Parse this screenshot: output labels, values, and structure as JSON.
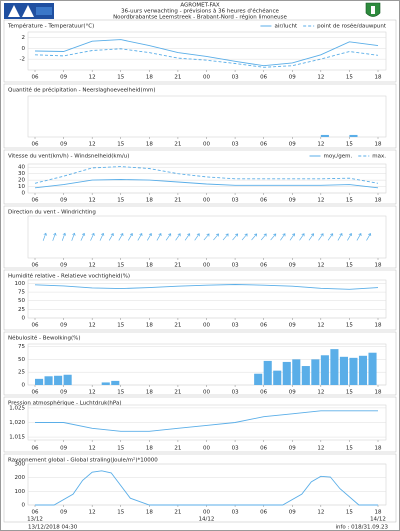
{
  "header": {
    "title": "AGROMET-FAX",
    "subtitle": "36-uurs verwachting - prévisions à 36 heures d'échéance",
    "region": "Noordbrabantse Leemstreek - Brabant-Nord - région limoneuse"
  },
  "footer": {
    "left": "13/12/2018 04:30",
    "right": "info : 018/31.09.23"
  },
  "chart_data": [
    {
      "type": "line",
      "title": "Température - Temperatuur(°C)",
      "legend": "top-right",
      "x": [
        0,
        3,
        6,
        9,
        12,
        15,
        18,
        21,
        24,
        27,
        30,
        33,
        36
      ],
      "series": [
        {
          "name": "air/lucht",
          "color": "#5aaee8",
          "dash": false,
          "values": [
            -0.5,
            -0.6,
            1.3,
            1.6,
            0.5,
            -0.8,
            -1.5,
            -2.4,
            -3.2,
            -2.7,
            -1.2,
            1.2,
            0.5
          ]
        },
        {
          "name": "point de rosée/dauwpunt",
          "color": "#5aaee8",
          "dash": true,
          "values": [
            -1.2,
            -1.4,
            -0.4,
            -0.1,
            -0.8,
            -1.8,
            -2.2,
            -2.8,
            -3.5,
            -3.2,
            -2,
            -0.6,
            -1.3
          ]
        }
      ],
      "xlim": [
        0,
        36
      ],
      "xticks": [
        {
          "value": 0,
          "label": "06"
        },
        {
          "value": 3,
          "label": "09"
        },
        {
          "value": 6,
          "label": "12"
        },
        {
          "value": 9,
          "label": "15"
        },
        {
          "value": 12,
          "label": "18"
        },
        {
          "value": 15,
          "label": "21"
        },
        {
          "value": 18,
          "label": "00"
        },
        {
          "value": 21,
          "label": "03"
        },
        {
          "value": 24,
          "label": "06"
        },
        {
          "value": 27,
          "label": "09"
        },
        {
          "value": 30,
          "label": "12"
        },
        {
          "value": 33,
          "label": "15"
        },
        {
          "value": 36,
          "label": "18"
        }
      ],
      "ylim": [
        -4,
        3
      ],
      "yticks": [
        -2,
        0,
        2
      ]
    },
    {
      "type": "bar",
      "title": "Quantité de précipitation - Neerslaghoeveelheid(mm)",
      "x": [
        30,
        33
      ],
      "color": "#5aaee8",
      "values": [
        0.1,
        0.1
      ],
      "xlim": [
        0,
        36
      ],
      "xticks": [
        {
          "value": 0,
          "label": "06"
        },
        {
          "value": 3,
          "label": "09"
        },
        {
          "value": 6,
          "label": "12"
        },
        {
          "value": 9,
          "label": "15"
        },
        {
          "value": 12,
          "label": "18"
        },
        {
          "value": 15,
          "label": "21"
        },
        {
          "value": 18,
          "label": "00"
        },
        {
          "value": 21,
          "label": "03"
        },
        {
          "value": 24,
          "label": "06"
        },
        {
          "value": 27,
          "label": "09"
        },
        {
          "value": 30,
          "label": "12"
        },
        {
          "value": 33,
          "label": "15"
        },
        {
          "value": 36,
          "label": "18"
        }
      ],
      "ylim": [
        0,
        2
      ],
      "yticks": []
    },
    {
      "type": "line",
      "title": "Vitesse du vent(km/h) - Windsnelheid(km/u)",
      "legend": "top-right",
      "x": [
        0,
        3,
        6,
        9,
        12,
        15,
        18,
        21,
        24,
        27,
        30,
        33,
        36
      ],
      "series": [
        {
          "name": "moy./gem.",
          "color": "#5aaee8",
          "dash": false,
          "values": [
            8,
            13,
            20,
            21,
            20,
            17,
            14,
            12,
            12,
            12,
            12,
            13,
            8
          ]
        },
        {
          "name": "max.",
          "color": "#5aaee8",
          "dash": true,
          "values": [
            15,
            26,
            39,
            41,
            38,
            30,
            25,
            22,
            22,
            22,
            22,
            23,
            15
          ]
        }
      ],
      "xlim": [
        0,
        36
      ],
      "xticks": [
        {
          "value": 0,
          "label": "06"
        },
        {
          "value": 3,
          "label": "09"
        },
        {
          "value": 6,
          "label": "12"
        },
        {
          "value": 9,
          "label": "15"
        },
        {
          "value": 12,
          "label": "18"
        },
        {
          "value": 15,
          "label": "21"
        },
        {
          "value": 18,
          "label": "00"
        },
        {
          "value": 21,
          "label": "03"
        },
        {
          "value": 24,
          "label": "06"
        },
        {
          "value": 27,
          "label": "09"
        },
        {
          "value": 30,
          "label": "12"
        },
        {
          "value": 33,
          "label": "15"
        },
        {
          "value": 36,
          "label": "18"
        }
      ],
      "ylim": [
        0,
        45
      ],
      "yticks": [
        0,
        10,
        20,
        30,
        40
      ]
    },
    {
      "type": "arrows",
      "title": "Direction du vent - Windrichting",
      "color": "#5aaee8",
      "x": [
        1,
        2,
        3,
        4,
        5,
        6,
        7,
        8,
        9,
        10,
        11,
        12,
        13,
        14,
        15,
        16,
        17,
        18,
        19,
        20,
        21,
        22,
        23,
        24,
        25,
        26,
        27,
        28,
        29,
        30,
        31,
        32,
        33,
        34,
        35
      ],
      "values": [
        200,
        200,
        200,
        200,
        205,
        205,
        205,
        210,
        210,
        210,
        210,
        210,
        210,
        215,
        215,
        215,
        215,
        220,
        220,
        220,
        220,
        220,
        220,
        220,
        220,
        215,
        215,
        215,
        215,
        215,
        215,
        210,
        210,
        210,
        210
      ],
      "xlim": [
        0,
        36
      ],
      "xticks": [
        {
          "value": 0,
          "label": "06"
        },
        {
          "value": 3,
          "label": "09"
        },
        {
          "value": 6,
          "label": "12"
        },
        {
          "value": 9,
          "label": "15"
        },
        {
          "value": 12,
          "label": "18"
        },
        {
          "value": 15,
          "label": "21"
        },
        {
          "value": 18,
          "label": "00"
        },
        {
          "value": 21,
          "label": "03"
        },
        {
          "value": 24,
          "label": "06"
        },
        {
          "value": 27,
          "label": "09"
        },
        {
          "value": 30,
          "label": "12"
        },
        {
          "value": 33,
          "label": "15"
        },
        {
          "value": 36,
          "label": "18"
        }
      ]
    },
    {
      "type": "line",
      "title": "Humidité relative - Relatieve vochtigheid(%)",
      "x": [
        0,
        3,
        6,
        9,
        12,
        15,
        18,
        21,
        24,
        27,
        30,
        33,
        36
      ],
      "series": [
        {
          "name": "humidité",
          "color": "#5aaee8",
          "dash": false,
          "values": [
            96,
            93,
            87,
            85,
            88,
            92,
            95,
            97,
            95,
            92,
            86,
            83,
            88
          ]
        }
      ],
      "xlim": [
        0,
        36
      ],
      "xticks": [
        {
          "value": 0,
          "label": "06"
        },
        {
          "value": 3,
          "label": "09"
        },
        {
          "value": 6,
          "label": "12"
        },
        {
          "value": 9,
          "label": "15"
        },
        {
          "value": 12,
          "label": "18"
        },
        {
          "value": 15,
          "label": "21"
        },
        {
          "value": 18,
          "label": "00"
        },
        {
          "value": 21,
          "label": "03"
        },
        {
          "value": 24,
          "label": "06"
        },
        {
          "value": 27,
          "label": "09"
        },
        {
          "value": 30,
          "label": "12"
        },
        {
          "value": 33,
          "label": "15"
        },
        {
          "value": 36,
          "label": "18"
        }
      ],
      "ylim": [
        0,
        110
      ],
      "yticks": [
        0,
        25,
        50,
        75,
        100
      ]
    },
    {
      "type": "bar",
      "title": "Nébulosité - Bewolking(%)",
      "color": "#5aaee8",
      "x": [
        0,
        1,
        2,
        3,
        7,
        8,
        23,
        24,
        25,
        26,
        27,
        28,
        29,
        30,
        31,
        32,
        33,
        34,
        35
      ],
      "values": [
        12,
        17,
        18,
        20,
        5,
        8,
        22,
        47,
        28,
        45,
        50,
        37,
        50,
        58,
        70,
        55,
        53,
        57,
        63
      ],
      "xlim": [
        0,
        36
      ],
      "xticks": [
        {
          "value": 0,
          "label": "06"
        },
        {
          "value": 3,
          "label": "09"
        },
        {
          "value": 6,
          "label": "12"
        },
        {
          "value": 9,
          "label": "15"
        },
        {
          "value": 12,
          "label": "18"
        },
        {
          "value": 15,
          "label": "21"
        },
        {
          "value": 18,
          "label": "00"
        },
        {
          "value": 21,
          "label": "03"
        },
        {
          "value": 24,
          "label": "06"
        },
        {
          "value": 27,
          "label": "09"
        },
        {
          "value": 30,
          "label": "12"
        },
        {
          "value": 33,
          "label": "15"
        },
        {
          "value": 36,
          "label": "18"
        }
      ],
      "ylim": [
        0,
        80
      ],
      "yticks": [
        0,
        25,
        50,
        75
      ]
    },
    {
      "type": "line",
      "title": "Pression atmosphérique - Luchtdruk(hPa)",
      "x": [
        0,
        3,
        6,
        9,
        12,
        15,
        18,
        21,
        24,
        27,
        30,
        33,
        36
      ],
      "series": [
        {
          "name": "pression",
          "color": "#5aaee8",
          "dash": false,
          "values": [
            1020,
            1020,
            1018,
            1017,
            1017,
            1018,
            1019,
            1020,
            1022,
            1023,
            1024,
            1024,
            1024
          ]
        }
      ],
      "xlim": [
        0,
        36
      ],
      "xticks": [
        {
          "value": 0,
          "label": "06"
        },
        {
          "value": 3,
          "label": "09"
        },
        {
          "value": 6,
          "label": "12"
        },
        {
          "value": 9,
          "label": "15"
        },
        {
          "value": 12,
          "label": "18"
        },
        {
          "value": 15,
          "label": "21"
        },
        {
          "value": 18,
          "label": "00"
        },
        {
          "value": 21,
          "label": "03"
        },
        {
          "value": 24,
          "label": "06"
        },
        {
          "value": 27,
          "label": "09"
        },
        {
          "value": 30,
          "label": "12"
        },
        {
          "value": 33,
          "label": "15"
        },
        {
          "value": 36,
          "label": "18"
        }
      ],
      "ylim": [
        1014,
        1026
      ],
      "yticks": [
        {
          "value": 1015,
          "label": "1,015"
        },
        {
          "value": 1020,
          "label": "1,020"
        },
        {
          "value": 1025,
          "label": "1,025"
        }
      ]
    },
    {
      "type": "line",
      "title": "Rayonnement global - Global straling(Joule/m²)*10000",
      "x": [
        0,
        2,
        4,
        5,
        6,
        7,
        8,
        10,
        12,
        24,
        26,
        28,
        29,
        30,
        31,
        32,
        34,
        36
      ],
      "series": [
        {
          "name": "rayonnement",
          "color": "#5aaee8",
          "dash": false,
          "values": [
            0,
            0,
            80,
            180,
            240,
            250,
            235,
            50,
            0,
            0,
            0,
            80,
            170,
            210,
            205,
            120,
            0,
            0
          ]
        }
      ],
      "xlim": [
        0,
        36
      ],
      "xticks": [
        {
          "value": 0,
          "label": "06"
        },
        {
          "value": 3,
          "label": "09"
        },
        {
          "value": 6,
          "label": "12"
        },
        {
          "value": 9,
          "label": "15"
        },
        {
          "value": 12,
          "label": "18"
        },
        {
          "value": 15,
          "label": "21"
        },
        {
          "value": 18,
          "label": "00"
        },
        {
          "value": 21,
          "label": "03"
        },
        {
          "value": 24,
          "label": "06"
        },
        {
          "value": 27,
          "label": "09"
        },
        {
          "value": 30,
          "label": "12"
        },
        {
          "value": 33,
          "label": "15"
        },
        {
          "value": 36,
          "label": "18"
        }
      ],
      "date_labels": [
        {
          "value": 0,
          "label": "13/12"
        },
        {
          "value": 18,
          "label": "14/12"
        },
        {
          "value": 36,
          "label": "14/12"
        }
      ],
      "ylim": [
        0,
        300
      ],
      "yticks": [
        0,
        100,
        200,
        300
      ]
    }
  ]
}
